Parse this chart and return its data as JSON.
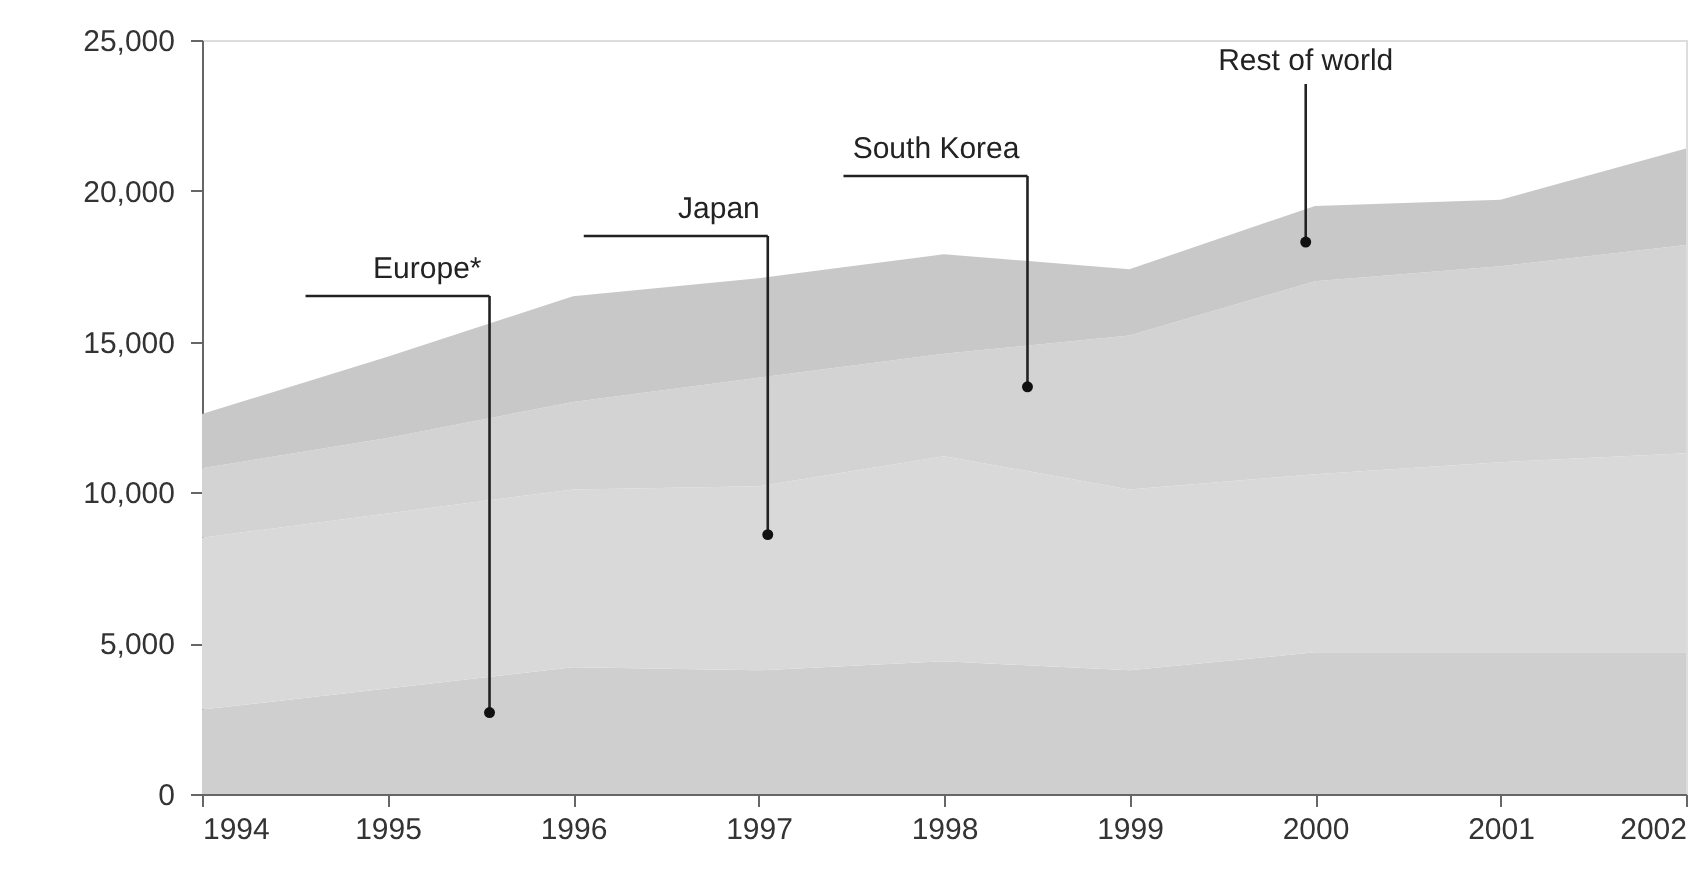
{
  "chart_data": {
    "type": "area",
    "stacked": true,
    "x": [
      1994,
      1995,
      1996,
      1997,
      1998,
      1999,
      2000,
      2001,
      2002
    ],
    "series": [
      {
        "color": "#cfcfcf",
        "values": [
          2800,
          3500,
          4200,
          4100,
          4400,
          4100,
          4700,
          4700,
          4700
        ]
      },
      {
        "color": "#d9d9d9",
        "values": [
          5700,
          5800,
          5900,
          6100,
          6800,
          6000,
          5900,
          6300,
          6600
        ]
      },
      {
        "color": "#d3d3d3",
        "values": [
          2300,
          2500,
          2900,
          3600,
          3400,
          5100,
          6400,
          6500,
          6900
        ]
      },
      {
        "color": "#c8c8c8",
        "values": [
          1800,
          2700,
          3500,
          3300,
          3300,
          2200,
          2500,
          2200,
          3200
        ]
      }
    ],
    "xlim": [
      1994,
      2002
    ],
    "xticks": [
      1994,
      1995,
      1996,
      1997,
      1998,
      1999,
      2000,
      2001,
      2002
    ],
    "ylim": [
      0,
      25000
    ],
    "yticks": [
      0,
      {
        "value": 5000,
        "label": "5,000"
      },
      {
        "value": 10000,
        "label": "10,000"
      },
      {
        "value": 15000,
        "label": "15,000"
      },
      {
        "value": 20000,
        "label": "20,000"
      },
      {
        "value": 25000,
        "label": "25,000"
      }
    ],
    "grid": false,
    "legend": false,
    "annotations": [
      {
        "text": "Europe*",
        "x": 1995.55,
        "y": 2700
      },
      {
        "text": "Japan",
        "x": 1997.05,
        "y": 8600
      },
      {
        "text": "South Korea",
        "x": 1998.45,
        "y": 13500
      },
      {
        "text": "Rest of world",
        "x": 1999.95,
        "y": 18300
      }
    ]
  }
}
